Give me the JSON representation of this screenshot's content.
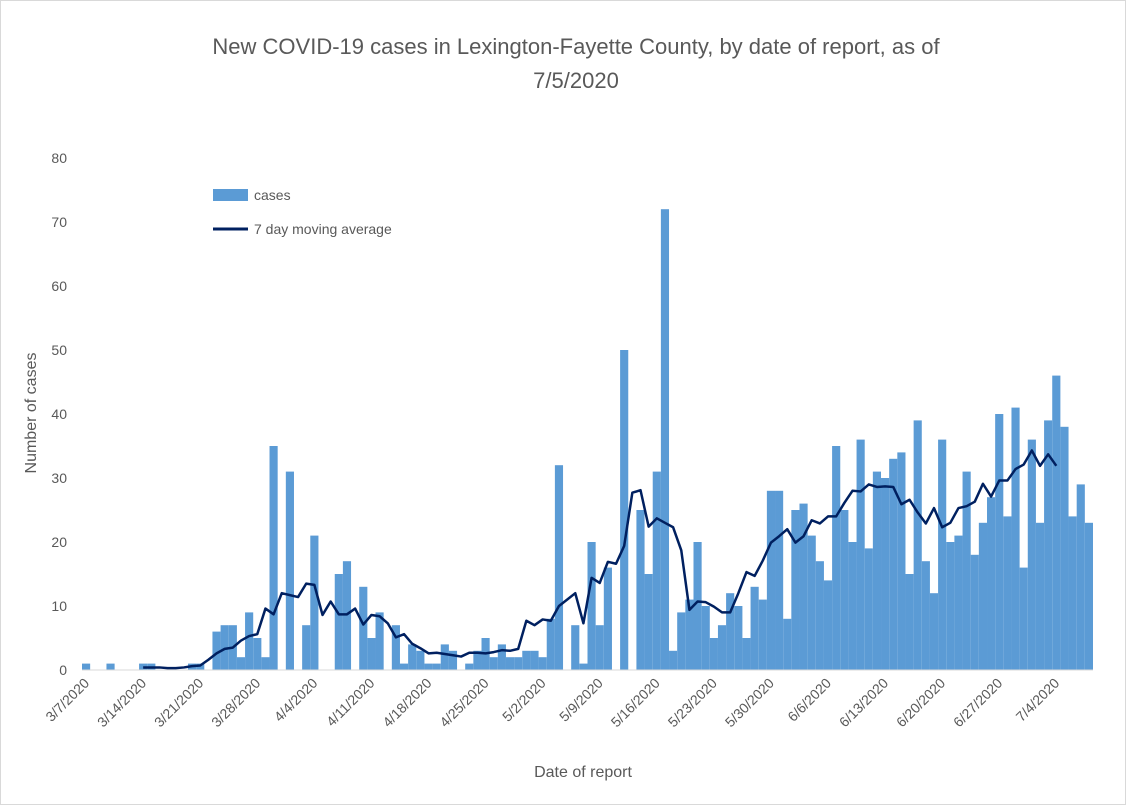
{
  "chart_data": {
    "type": "bar",
    "title_lines": [
      "New COVID-19 cases in Lexington-Fayette County, by date of report, as of",
      "7/5/2020"
    ],
    "xlabel": "Date of report",
    "ylabel": "Number of cases",
    "ylim": [
      0,
      80
    ],
    "yticks": [
      0,
      10,
      20,
      30,
      40,
      50,
      60,
      70,
      80
    ],
    "grid": false,
    "legend_position": "top-left",
    "x_start": "3/7/2020",
    "xtick_labels": [
      "3/7/2020",
      "3/14/2020",
      "3/21/2020",
      "3/28/2020",
      "4/4/2020",
      "4/11/2020",
      "4/18/2020",
      "4/25/2020",
      "5/2/2020",
      "5/9/2020",
      "5/16/2020",
      "5/23/2020",
      "5/30/2020",
      "6/6/2020",
      "6/13/2020",
      "6/20/2020",
      "6/27/2020",
      "7/4/2020"
    ],
    "series": [
      {
        "name": "cases",
        "kind": "bar",
        "color": "#5b9bd5",
        "values": [
          1,
          0,
          0,
          1,
          0,
          0,
          0,
          1,
          1,
          0,
          0,
          0,
          0,
          1,
          1,
          0,
          6,
          7,
          7,
          2,
          9,
          5,
          2,
          35,
          0,
          31,
          0,
          7,
          21,
          0,
          0,
          15,
          17,
          0,
          13,
          5,
          9,
          0,
          7,
          1,
          4,
          3,
          1,
          1,
          4,
          3,
          0,
          1,
          3,
          5,
          2,
          4,
          2,
          2,
          3,
          3,
          2,
          8,
          32,
          0,
          7,
          1,
          20,
          7,
          16,
          0,
          50,
          0,
          25,
          15,
          31,
          72,
          3,
          9,
          11,
          20,
          10,
          5,
          7,
          12,
          10,
          5,
          13,
          11,
          28,
          28,
          8,
          25,
          26,
          21,
          17,
          14,
          35,
          25,
          20,
          36,
          19,
          31,
          30,
          33,
          34,
          15,
          39,
          17,
          12,
          36,
          20,
          21,
          31,
          18,
          23,
          27,
          40,
          24,
          41,
          16,
          36,
          23,
          39,
          46,
          38,
          24,
          29,
          23
        ]
      },
      {
        "name": "7 day moving average",
        "kind": "line",
        "color": "#002060",
        "start_index": 7,
        "values": [
          0.4,
          0.4,
          0.4,
          0.3,
          0.3,
          0.4,
          0.6,
          0.7,
          1.6,
          2.6,
          3.3,
          3.5,
          4.6,
          5.3,
          5.6,
          9.6,
          8.7,
          12,
          11.7,
          11.4,
          13.5,
          13.3,
          8.6,
          10.7,
          8.7,
          8.7,
          9.6,
          7.1,
          8.6,
          8.4,
          7.3,
          5.1,
          5.6,
          4.1,
          3.4,
          2.6,
          2.7,
          2.5,
          2.3,
          2.1,
          2.7,
          2.7,
          2.6,
          2.8,
          3.1,
          3,
          3.3,
          7.7,
          7,
          7.9,
          7.7,
          10,
          11,
          12,
          7.3,
          14.4,
          13.6,
          16.9,
          16.6,
          19.4,
          27.7,
          28.1,
          22.4,
          23.7,
          23,
          22.3,
          18.7,
          9.4,
          10.7,
          10.6,
          9.9,
          9,
          9,
          12,
          15.3,
          14.7,
          17.1,
          19.9,
          20.9,
          22,
          19.9,
          20.9,
          23.4,
          22.9,
          24,
          24,
          26.1,
          28,
          27.9,
          29,
          28.6,
          28.7,
          28.6,
          25.9,
          26.6,
          24.6,
          22.9,
          25.3,
          22.3,
          23,
          25.3,
          25.6,
          26.3,
          29.1,
          27.1,
          29.6,
          29.6,
          31.4,
          32.1,
          34.3,
          31.9,
          33.7,
          31.9
        ]
      }
    ]
  }
}
